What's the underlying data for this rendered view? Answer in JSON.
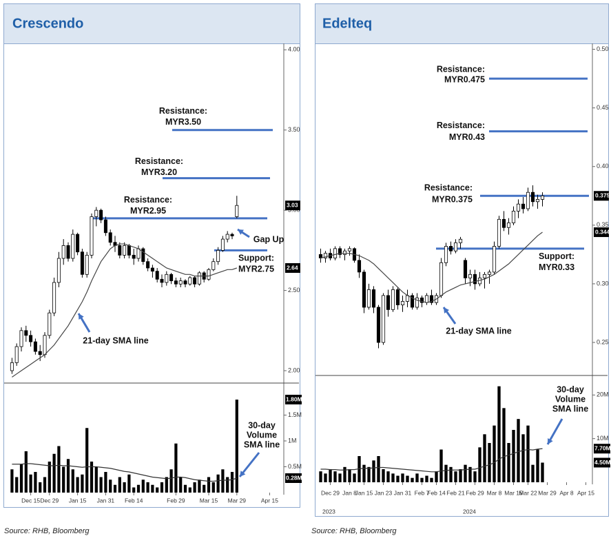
{
  "chart_data": [
    {
      "type": "candlestick",
      "title": "Crescendo",
      "source": "Source: RHB, Bloomberg",
      "xticks": [
        {
          "value": 4,
          "label": "Dec 15"
        },
        {
          "value": 8,
          "label": "Dec 29"
        },
        {
          "value": 14,
          "label": "Jan 15"
        },
        {
          "value": 20,
          "label": "Jan 31"
        },
        {
          "value": 26,
          "label": "Feb 14"
        },
        {
          "value": 35,
          "label": "Feb 29"
        },
        {
          "value": 42,
          "label": "Mar 15"
        },
        {
          "value": 48,
          "label": "Mar 29"
        },
        {
          "value": 55,
          "label": "Apr 15"
        }
      ],
      "ylim": [
        1.94,
        4.04
      ],
      "yticks": [
        {
          "value": 4,
          "label": "4.00"
        },
        {
          "value": 3.5,
          "label": "3.50"
        },
        {
          "value": 3,
          "label": "3.00"
        },
        {
          "value": 2.5,
          "label": "2.50"
        },
        {
          "value": 2,
          "label": "2.00"
        }
      ],
      "candles": [
        [
          2.0,
          2.08,
          1.98,
          2.05
        ],
        [
          2.05,
          2.17,
          2.03,
          2.15
        ],
        [
          2.15,
          2.27,
          2.12,
          2.25
        ],
        [
          2.25,
          2.28,
          2.18,
          2.22
        ],
        [
          2.22,
          2.25,
          2.15,
          2.18
        ],
        [
          2.18,
          2.2,
          2.1,
          2.12
        ],
        [
          2.12,
          2.16,
          2.06,
          2.1
        ],
        [
          2.1,
          2.24,
          2.08,
          2.22
        ],
        [
          2.22,
          2.38,
          2.2,
          2.36
        ],
        [
          2.36,
          2.58,
          2.34,
          2.55
        ],
        [
          2.55,
          2.74,
          2.52,
          2.7
        ],
        [
          2.7,
          2.82,
          2.66,
          2.78
        ],
        [
          2.78,
          2.8,
          2.68,
          2.7
        ],
        [
          2.7,
          2.88,
          2.68,
          2.85
        ],
        [
          2.85,
          2.86,
          2.72,
          2.74
        ],
        [
          2.74,
          2.76,
          2.58,
          2.6
        ],
        [
          2.6,
          2.74,
          2.58,
          2.72
        ],
        [
          2.72,
          2.98,
          2.7,
          2.96
        ],
        [
          2.96,
          3.02,
          2.9,
          3.0
        ],
        [
          3.0,
          3.01,
          2.92,
          2.94
        ],
        [
          2.94,
          2.96,
          2.84,
          2.86
        ],
        [
          2.86,
          2.88,
          2.78,
          2.8
        ],
        [
          2.8,
          2.84,
          2.74,
          2.78
        ],
        [
          2.78,
          2.8,
          2.7,
          2.72
        ],
        [
          2.72,
          2.8,
          2.7,
          2.78
        ],
        [
          2.78,
          2.79,
          2.7,
          2.72
        ],
        [
          2.72,
          2.76,
          2.66,
          2.7
        ],
        [
          2.7,
          2.78,
          2.68,
          2.76
        ],
        [
          2.76,
          2.77,
          2.66,
          2.68
        ],
        [
          2.68,
          2.7,
          2.62,
          2.64
        ],
        [
          2.64,
          2.66,
          2.58,
          2.62
        ],
        [
          2.62,
          2.64,
          2.55,
          2.57
        ],
        [
          2.57,
          2.6,
          2.52,
          2.55
        ],
        [
          2.55,
          2.62,
          2.53,
          2.6
        ],
        [
          2.6,
          2.61,
          2.54,
          2.56
        ],
        [
          2.56,
          2.58,
          2.52,
          2.54
        ],
        [
          2.54,
          2.58,
          2.52,
          2.56
        ],
        [
          2.56,
          2.57,
          2.52,
          2.54
        ],
        [
          2.54,
          2.59,
          2.53,
          2.58
        ],
        [
          2.58,
          2.59,
          2.52,
          2.54
        ],
        [
          2.54,
          2.62,
          2.53,
          2.61
        ],
        [
          2.61,
          2.62,
          2.55,
          2.57
        ],
        [
          2.57,
          2.64,
          2.56,
          2.63
        ],
        [
          2.63,
          2.7,
          2.62,
          2.68
        ],
        [
          2.68,
          2.77,
          2.66,
          2.75
        ],
        [
          2.75,
          2.84,
          2.74,
          2.82
        ],
        [
          2.82,
          2.87,
          2.8,
          2.85
        ],
        [
          2.85,
          2.86,
          2.82,
          2.84
        ],
        [
          2.96,
          3.09,
          2.95,
          3.03
        ]
      ],
      "sma": [
        1.96,
        1.98,
        2.0,
        2.02,
        2.04,
        2.06,
        2.08,
        2.1,
        2.13,
        2.16,
        2.2,
        2.24,
        2.28,
        2.33,
        2.38,
        2.43,
        2.49,
        2.56,
        2.62,
        2.68,
        2.72,
        2.76,
        2.78,
        2.79,
        2.79,
        2.78,
        2.77,
        2.76,
        2.74,
        2.72,
        2.7,
        2.68,
        2.66,
        2.64,
        2.63,
        2.62,
        2.61,
        2.6,
        2.6,
        2.59,
        2.59,
        2.59,
        2.59,
        2.6,
        2.61,
        2.62,
        2.63,
        2.63,
        2.64
      ],
      "price_badges": [
        3.03,
        2.64
      ],
      "levels": [
        {
          "label": [
            "Resistance:",
            "MYR3.50"
          ],
          "value": 3.5
        },
        {
          "label": [
            "Resistance:",
            "MYR3.20"
          ],
          "value": 3.2
        },
        {
          "label": [
            "Resistance:",
            "MYR2.95"
          ],
          "value": 2.95
        },
        {
          "label": [
            "Support:",
            "MYR2.75"
          ],
          "value": 2.75
        }
      ],
      "gap_label": "Gap Up",
      "sma_label": "21-day SMA line",
      "volume": {
        "ylim": [
          0,
          2.0
        ],
        "yticks": [
          {
            "value": 0.5,
            "label": "0.5M"
          },
          {
            "value": 1,
            "label": "1M"
          },
          {
            "value": 1.5,
            "label": "1.5M"
          }
        ],
        "values": [
          0.45,
          0.3,
          0.55,
          0.8,
          0.35,
          0.4,
          0.2,
          0.3,
          0.6,
          0.75,
          0.9,
          0.5,
          0.65,
          0.45,
          0.3,
          0.35,
          1.25,
          0.6,
          0.5,
          0.3,
          0.4,
          0.25,
          0.15,
          0.3,
          0.2,
          0.35,
          0.1,
          0.15,
          0.25,
          0.2,
          0.15,
          0.1,
          0.2,
          0.3,
          0.45,
          0.95,
          0.3,
          0.15,
          0.1,
          0.2,
          0.25,
          0.15,
          0.3,
          0.2,
          0.35,
          0.45,
          0.3,
          0.4,
          1.8
        ],
        "sma": [
          0.55,
          0.55,
          0.55,
          0.56,
          0.56,
          0.55,
          0.54,
          0.53,
          0.52,
          0.52,
          0.53,
          0.52,
          0.52,
          0.51,
          0.5,
          0.49,
          0.5,
          0.5,
          0.5,
          0.49,
          0.48,
          0.47,
          0.45,
          0.43,
          0.41,
          0.4,
          0.38,
          0.36,
          0.34,
          0.32,
          0.3,
          0.29,
          0.28,
          0.27,
          0.28,
          0.3,
          0.3,
          0.29,
          0.27,
          0.25,
          0.24,
          0.23,
          0.22,
          0.22,
          0.23,
          0.24,
          0.24,
          0.25,
          0.28
        ],
        "badges": [
          {
            "value": 1.8,
            "label": "1.80M"
          },
          {
            "value": 0.28,
            "label": "0.28M"
          }
        ],
        "sma_label": [
          "30-day",
          "Volume",
          "SMA line"
        ]
      }
    },
    {
      "type": "candlestick",
      "title": "Edelteq",
      "source": "Source: RHB, Bloomberg",
      "xticks": [
        {
          "value": 2,
          "label": "Dec 29"
        },
        {
          "value": 6,
          "label": "Jan 8"
        },
        {
          "value": 9,
          "label": "Jan 15"
        },
        {
          "value": 13,
          "label": "Jan 23"
        },
        {
          "value": 17,
          "label": "Jan 31"
        },
        {
          "value": 21,
          "label": "Feb 7"
        },
        {
          "value": 24,
          "label": "Feb 14"
        },
        {
          "value": 28,
          "label": "Feb 21"
        },
        {
          "value": 32,
          "label": "Feb 29"
        },
        {
          "value": 36,
          "label": "Mar 8"
        },
        {
          "value": 40,
          "label": "Mar 15"
        },
        {
          "value": 43,
          "label": "Mar 22"
        },
        {
          "value": 47,
          "label": "Mar 29"
        },
        {
          "value": 51,
          "label": "Apr 8"
        },
        {
          "value": 55,
          "label": "Apr 15"
        }
      ],
      "years": [
        "2023",
        "2024"
      ],
      "ylim": [
        0.223,
        0.505
      ],
      "yticks": [
        {
          "value": 0.5,
          "label": "0.50"
        },
        0.45,
        {
          "value": 0.4,
          "label": "0.40"
        },
        0.35,
        {
          "value": 0.3,
          "label": "0.30"
        },
        0.25
      ],
      "candles": [
        [
          0.325,
          0.33,
          0.318,
          0.322
        ],
        [
          0.322,
          0.328,
          0.318,
          0.326
        ],
        [
          0.326,
          0.33,
          0.32,
          0.322
        ],
        [
          0.322,
          0.332,
          0.32,
          0.33
        ],
        [
          0.33,
          0.332,
          0.322,
          0.325
        ],
        [
          0.325,
          0.33,
          0.32,
          0.328
        ],
        [
          0.328,
          0.332,
          0.324,
          0.33
        ],
        [
          0.33,
          0.331,
          0.318,
          0.32
        ],
        [
          0.32,
          0.325,
          0.305,
          0.31
        ],
        [
          0.31,
          0.312,
          0.275,
          0.28
        ],
        [
          0.28,
          0.3,
          0.278,
          0.295
        ],
        [
          0.295,
          0.298,
          0.275,
          0.28
        ],
        [
          0.28,
          0.282,
          0.245,
          0.25
        ],
        [
          0.25,
          0.292,
          0.248,
          0.29
        ],
        [
          0.29,
          0.295,
          0.272,
          0.278
        ],
        [
          0.278,
          0.298,
          0.276,
          0.295
        ],
        [
          0.295,
          0.297,
          0.278,
          0.282
        ],
        [
          0.282,
          0.29,
          0.276,
          0.285
        ],
        [
          0.285,
          0.295,
          0.28,
          0.29
        ],
        [
          0.29,
          0.292,
          0.278,
          0.28
        ],
        [
          0.28,
          0.292,
          0.278,
          0.288
        ],
        [
          0.288,
          0.29,
          0.28,
          0.284
        ],
        [
          0.284,
          0.292,
          0.282,
          0.29
        ],
        [
          0.29,
          0.295,
          0.282,
          0.284
        ],
        [
          0.284,
          0.292,
          0.282,
          0.29
        ],
        [
          0.29,
          0.322,
          0.288,
          0.318
        ],
        [
          0.318,
          0.335,
          0.315,
          0.332
        ],
        [
          0.332,
          0.336,
          0.325,
          0.328
        ],
        [
          0.328,
          0.338,
          0.326,
          0.335
        ],
        [
          0.335,
          0.34,
          0.33,
          0.338
        ],
        [
          0.32,
          0.322,
          0.3,
          0.305
        ],
        [
          0.305,
          0.312,
          0.298,
          0.308
        ],
        [
          0.308,
          0.312,
          0.295,
          0.3
        ],
        [
          0.3,
          0.31,
          0.298,
          0.305
        ],
        [
          0.305,
          0.31,
          0.296,
          0.308
        ],
        [
          0.308,
          0.312,
          0.3,
          0.31
        ],
        [
          0.31,
          0.336,
          0.308,
          0.332
        ],
        [
          0.332,
          0.358,
          0.33,
          0.355
        ],
        [
          0.355,
          0.362,
          0.345,
          0.348
        ],
        [
          0.348,
          0.356,
          0.342,
          0.352
        ],
        [
          0.352,
          0.366,
          0.35,
          0.362
        ],
        [
          0.362,
          0.372,
          0.356,
          0.368
        ],
        [
          0.368,
          0.374,
          0.36,
          0.364
        ],
        [
          0.364,
          0.382,
          0.362,
          0.378
        ],
        [
          0.378,
          0.384,
          0.366,
          0.37
        ],
        [
          0.37,
          0.376,
          0.364,
          0.372
        ],
        [
          0.372,
          0.378,
          0.366,
          0.375
        ]
      ],
      "sma": [
        0.322,
        0.323,
        0.324,
        0.325,
        0.326,
        0.326,
        0.326,
        0.325,
        0.324,
        0.322,
        0.32,
        0.317,
        0.313,
        0.309,
        0.305,
        0.301,
        0.297,
        0.293,
        0.29,
        0.288,
        0.286,
        0.285,
        0.284,
        0.285,
        0.287,
        0.29,
        0.293,
        0.295,
        0.297,
        0.299,
        0.3,
        0.301,
        0.302,
        0.303,
        0.304,
        0.306,
        0.308,
        0.311,
        0.314,
        0.317,
        0.321,
        0.325,
        0.329,
        0.333,
        0.337,
        0.341,
        0.344
      ],
      "price_badges": [
        0.375,
        0.344
      ],
      "levels": [
        {
          "label": [
            "Resistance:",
            "MYR0.475"
          ],
          "value": 0.475
        },
        {
          "label": [
            "Resistance:",
            "MYR0.43"
          ],
          "value": 0.43
        },
        {
          "label": [
            "Resistance:",
            "MYR0.375"
          ],
          "value": 0.375
        },
        {
          "label": [
            "Support:",
            "MYR0.33"
          ],
          "value": 0.33
        }
      ],
      "sma_label": "21-day SMA line",
      "volume": {
        "ylim": [
          0,
          24
        ],
        "yticks": [
          {
            "value": 10,
            "label": "10M"
          },
          {
            "value": 20,
            "label": "20M"
          }
        ],
        "values": [
          2.5,
          2.0,
          3.0,
          2.5,
          2.0,
          3.5,
          3.0,
          2.0,
          6.0,
          4.0,
          3.5,
          5.0,
          6.0,
          3.0,
          2.5,
          2.0,
          1.5,
          2.0,
          1.5,
          1.0,
          2.0,
          1.0,
          1.5,
          1.0,
          2.5,
          7.5,
          4.0,
          3.5,
          2.5,
          3.0,
          4.0,
          3.5,
          2.5,
          8.0,
          11.0,
          9.0,
          13.0,
          22.0,
          17.0,
          9.0,
          12.0,
          14.5,
          11.0,
          13.0,
          4.0,
          7.5,
          4.5
        ],
        "sma": [
          3.0,
          3.0,
          2.9,
          2.9,
          2.8,
          2.8,
          2.9,
          2.9,
          3.1,
          3.2,
          3.2,
          3.3,
          3.4,
          3.4,
          3.3,
          3.2,
          3.1,
          3.0,
          2.9,
          2.8,
          2.7,
          2.6,
          2.5,
          2.4,
          2.4,
          2.6,
          2.7,
          2.8,
          2.8,
          2.8,
          2.9,
          3.0,
          3.0,
          3.3,
          3.7,
          4.0,
          4.5,
          5.3,
          5.9,
          6.2,
          6.6,
          7.0,
          7.3,
          7.5,
          7.4,
          7.6,
          7.7
        ],
        "badges": [
          {
            "value": 7.7,
            "label": "7.70M"
          },
          {
            "value": 4.5,
            "label": "4.50M"
          }
        ],
        "sma_label": [
          "30-day",
          "Volume",
          "SMA line"
        ]
      }
    }
  ]
}
